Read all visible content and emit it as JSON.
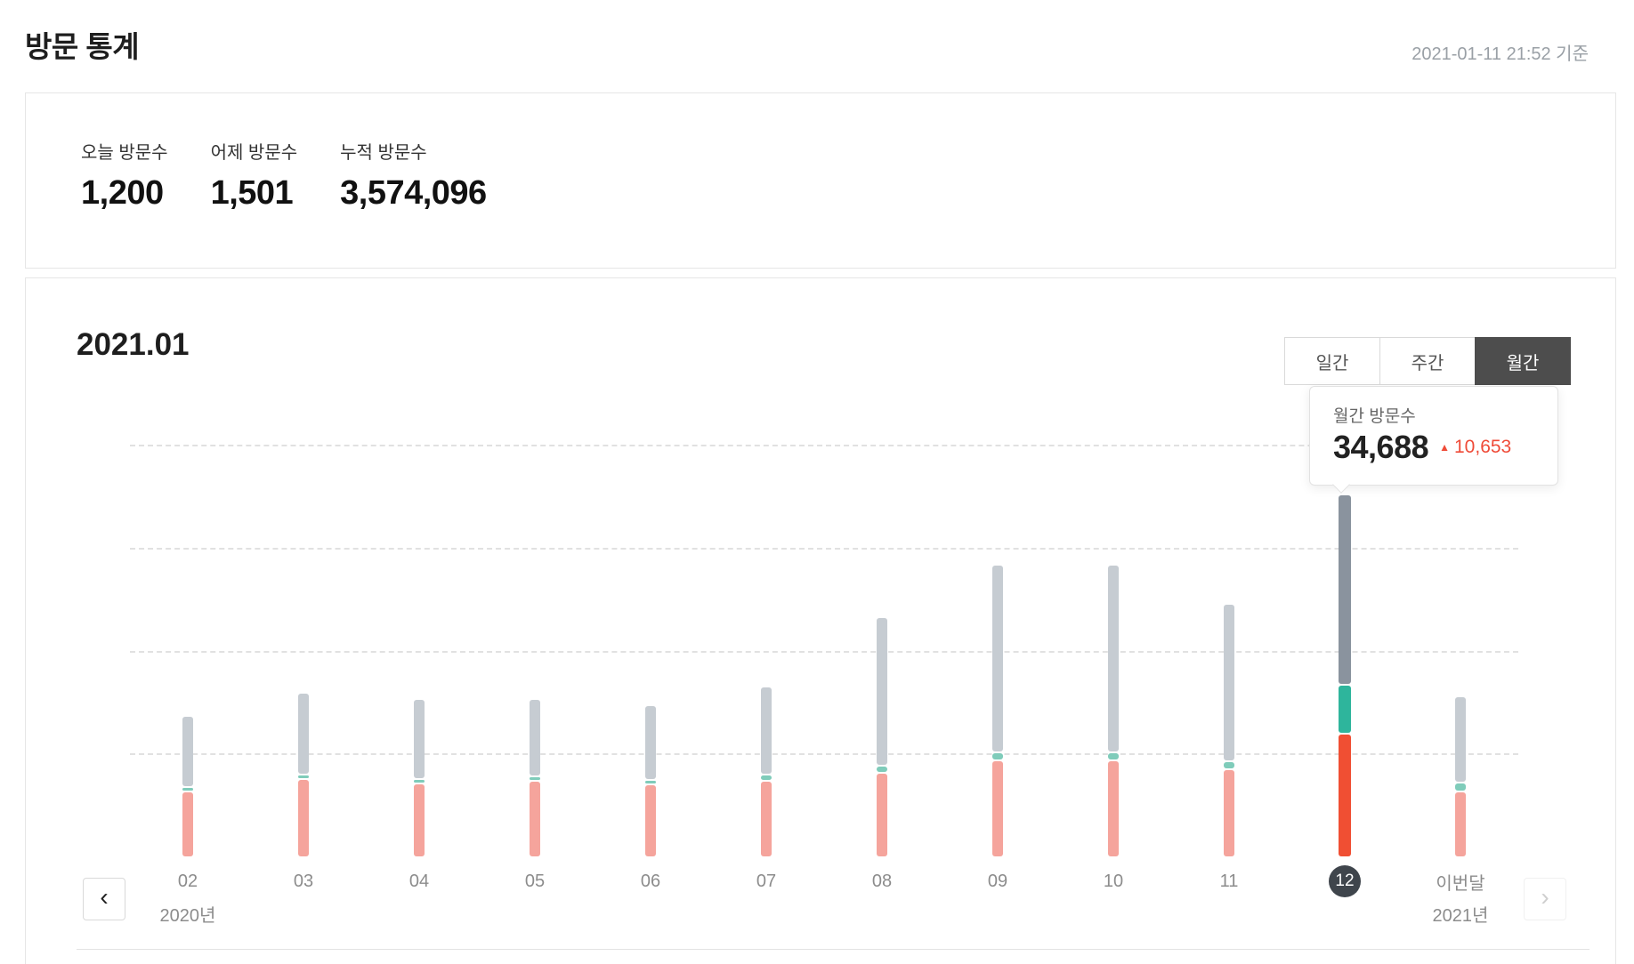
{
  "header": {
    "title": "방문 통계",
    "timestamp": "2021-01-11 21:52 기준"
  },
  "summary": {
    "stats": [
      {
        "label": "오늘 방문수",
        "value": "1,200"
      },
      {
        "label": "어제 방문수",
        "value": "1,501"
      },
      {
        "label": "누적 방문수",
        "value": "3,574,096"
      }
    ]
  },
  "chart_card": {
    "period_title": "2021.01",
    "tabs": [
      {
        "label": "일간",
        "active": false
      },
      {
        "label": "주간",
        "active": false
      },
      {
        "label": "월간",
        "active": true
      }
    ],
    "tooltip": {
      "label": "월간 방문수",
      "value": "34,688",
      "delta": "10,653",
      "delta_direction": "up",
      "delta_icon": "▲",
      "delta_color": "#ef4b38"
    },
    "nav": {
      "prev_icon": "‹",
      "next_icon": "›"
    }
  },
  "chart_data": {
    "type": "bar",
    "stacked": true,
    "title": "2021.01",
    "xlabel": "",
    "ylabel": "",
    "ylim": [
      0,
      40000
    ],
    "gridlines": [
      10000,
      20000,
      30000,
      40000
    ],
    "grid": "dashed-horizontal",
    "legend": "none",
    "categories": [
      "02",
      "03",
      "04",
      "05",
      "06",
      "07",
      "08",
      "09",
      "10",
      "11",
      "12",
      "이번달"
    ],
    "category_year_labels": {
      "02": "2020년",
      "이번달": "2021년"
    },
    "highlighted_category": "12",
    "highlighted_total": 34688,
    "series": [
      {
        "name": "segment-red-bottom",
        "color_normal": "#f5a49c",
        "color_highlight": "#f04f33",
        "values": [
          6200,
          7400,
          7000,
          7200,
          6900,
          7200,
          8000,
          9200,
          9200,
          8400,
          11800,
          6200
        ]
      },
      {
        "name": "segment-teal-middle",
        "color_normal": "#7fccba",
        "color_highlight": "#2eb59c",
        "values": [
          300,
          300,
          300,
          300,
          300,
          400,
          500,
          600,
          600,
          600,
          4600,
          700
        ]
      },
      {
        "name": "segment-gray-top",
        "color_normal": "#c6ccd2",
        "color_highlight": "#8a939e",
        "values": [
          6700,
          7800,
          7600,
          7300,
          7100,
          8400,
          14200,
          18000,
          18000,
          15100,
          18288,
          8200
        ]
      }
    ]
  }
}
